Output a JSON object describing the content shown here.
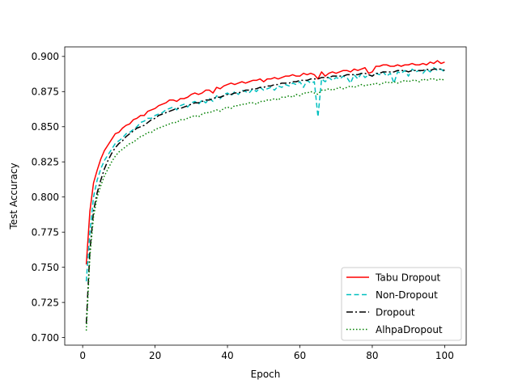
{
  "chart_data": {
    "type": "line",
    "title": "",
    "xlabel": "Epoch",
    "ylabel": "Test Accuracy",
    "xlim": [
      -4.95,
      105.95
    ],
    "ylim": [
      0.6946,
      0.9068
    ],
    "xticks": [
      0,
      20,
      40,
      60,
      80,
      100
    ],
    "yticks": [
      0.7,
      0.725,
      0.75,
      0.775,
      0.8,
      0.825,
      0.85,
      0.875,
      0.9
    ],
    "ytick_labels": [
      "0.700",
      "0.725",
      "0.750",
      "0.775",
      "0.800",
      "0.825",
      "0.850",
      "0.875",
      "0.900"
    ],
    "legend_position": "lower-right",
    "grid": false,
    "x": [
      1,
      2,
      3,
      4,
      5,
      6,
      7,
      8,
      9,
      10,
      11,
      12,
      13,
      14,
      15,
      16,
      17,
      18,
      19,
      20,
      21,
      22,
      23,
      24,
      25,
      26,
      27,
      28,
      29,
      30,
      31,
      32,
      33,
      34,
      35,
      36,
      37,
      38,
      39,
      40,
      41,
      42,
      43,
      44,
      45,
      46,
      47,
      48,
      49,
      50,
      51,
      52,
      53,
      54,
      55,
      56,
      57,
      58,
      59,
      60,
      61,
      62,
      63,
      64,
      65,
      66,
      67,
      68,
      69,
      70,
      71,
      72,
      73,
      74,
      75,
      76,
      77,
      78,
      79,
      80,
      81,
      82,
      83,
      84,
      85,
      86,
      87,
      88,
      89,
      90,
      91,
      92,
      93,
      94,
      95,
      96,
      97,
      98,
      99,
      100
    ],
    "series": [
      {
        "name": "Tabu Dropout",
        "color": "#ff0000",
        "style": "solid",
        "values": [
          0.752,
          0.79,
          0.81,
          0.819,
          0.827,
          0.833,
          0.837,
          0.841,
          0.845,
          0.846,
          0.849,
          0.851,
          0.852,
          0.855,
          0.856,
          0.858,
          0.858,
          0.861,
          0.862,
          0.863,
          0.865,
          0.866,
          0.867,
          0.869,
          0.869,
          0.868,
          0.87,
          0.87,
          0.871,
          0.873,
          0.874,
          0.873,
          0.874,
          0.876,
          0.876,
          0.874,
          0.878,
          0.877,
          0.879,
          0.88,
          0.881,
          0.88,
          0.881,
          0.882,
          0.881,
          0.882,
          0.883,
          0.883,
          0.884,
          0.882,
          0.884,
          0.884,
          0.885,
          0.884,
          0.885,
          0.886,
          0.886,
          0.887,
          0.886,
          0.886,
          0.888,
          0.887,
          0.888,
          0.887,
          0.884,
          0.889,
          0.886,
          0.888,
          0.889,
          0.888,
          0.889,
          0.89,
          0.89,
          0.889,
          0.891,
          0.89,
          0.891,
          0.892,
          0.888,
          0.889,
          0.893,
          0.893,
          0.894,
          0.894,
          0.893,
          0.893,
          0.894,
          0.893,
          0.894,
          0.894,
          0.895,
          0.894,
          0.894,
          0.895,
          0.894,
          0.896,
          0.895,
          0.897,
          0.895,
          0.896
        ]
      },
      {
        "name": "Non-Dropout",
        "color": "#00bfbf",
        "style": "dashed",
        "values": [
          0.74,
          0.775,
          0.8,
          0.812,
          0.82,
          0.826,
          0.83,
          0.834,
          0.838,
          0.84,
          0.842,
          0.845,
          0.846,
          0.848,
          0.85,
          0.853,
          0.854,
          0.856,
          0.856,
          0.858,
          0.859,
          0.86,
          0.862,
          0.863,
          0.864,
          0.862,
          0.865,
          0.866,
          0.864,
          0.867,
          0.868,
          0.866,
          0.869,
          0.867,
          0.87,
          0.868,
          0.872,
          0.87,
          0.873,
          0.874,
          0.872,
          0.875,
          0.873,
          0.876,
          0.875,
          0.874,
          0.877,
          0.875,
          0.878,
          0.876,
          0.877,
          0.878,
          0.876,
          0.879,
          0.878,
          0.88,
          0.879,
          0.881,
          0.88,
          0.882,
          0.878,
          0.883,
          0.881,
          0.882,
          0.857,
          0.884,
          0.882,
          0.885,
          0.883,
          0.885,
          0.884,
          0.886,
          0.885,
          0.881,
          0.887,
          0.884,
          0.888,
          0.885,
          0.887,
          0.886,
          0.888,
          0.887,
          0.889,
          0.886,
          0.888,
          0.881,
          0.889,
          0.888,
          0.89,
          0.886,
          0.891,
          0.889,
          0.89,
          0.888,
          0.891,
          0.889,
          0.892,
          0.89,
          0.891,
          0.889
        ]
      },
      {
        "name": "Dropout",
        "color": "#000000",
        "style": "dashdot",
        "values": [
          0.71,
          0.762,
          0.79,
          0.803,
          0.812,
          0.82,
          0.826,
          0.831,
          0.835,
          0.838,
          0.84,
          0.843,
          0.845,
          0.847,
          0.849,
          0.85,
          0.851,
          0.853,
          0.855,
          0.856,
          0.858,
          0.859,
          0.86,
          0.861,
          0.862,
          0.863,
          0.863,
          0.864,
          0.865,
          0.866,
          0.867,
          0.867,
          0.868,
          0.869,
          0.869,
          0.87,
          0.871,
          0.871,
          0.872,
          0.873,
          0.873,
          0.874,
          0.874,
          0.875,
          0.876,
          0.876,
          0.877,
          0.877,
          0.878,
          0.878,
          0.879,
          0.879,
          0.88,
          0.88,
          0.881,
          0.881,
          0.881,
          0.882,
          0.882,
          0.883,
          0.883,
          0.883,
          0.884,
          0.884,
          0.884,
          0.885,
          0.885,
          0.885,
          0.886,
          0.886,
          0.886,
          0.886,
          0.887,
          0.887,
          0.887,
          0.887,
          0.888,
          0.888,
          0.887,
          0.886,
          0.888,
          0.888,
          0.889,
          0.889,
          0.889,
          0.889,
          0.89,
          0.89,
          0.89,
          0.889,
          0.89,
          0.89,
          0.89,
          0.89,
          0.891,
          0.89,
          0.891,
          0.891,
          0.891,
          0.89
        ]
      },
      {
        "name": "AlhpaDropout",
        "color": "#008000",
        "style": "dotted",
        "values": [
          0.705,
          0.758,
          0.786,
          0.8,
          0.808,
          0.815,
          0.82,
          0.825,
          0.829,
          0.832,
          0.834,
          0.836,
          0.838,
          0.839,
          0.841,
          0.843,
          0.844,
          0.846,
          0.846,
          0.848,
          0.849,
          0.85,
          0.851,
          0.852,
          0.853,
          0.853,
          0.855,
          0.855,
          0.856,
          0.857,
          0.858,
          0.857,
          0.859,
          0.86,
          0.86,
          0.861,
          0.862,
          0.861,
          0.863,
          0.864,
          0.863,
          0.865,
          0.865,
          0.866,
          0.866,
          0.867,
          0.867,
          0.866,
          0.868,
          0.868,
          0.869,
          0.869,
          0.87,
          0.869,
          0.871,
          0.871,
          0.872,
          0.871,
          0.873,
          0.872,
          0.874,
          0.874,
          0.875,
          0.874,
          0.873,
          0.876,
          0.876,
          0.877,
          0.876,
          0.877,
          0.878,
          0.877,
          0.878,
          0.879,
          0.878,
          0.879,
          0.88,
          0.879,
          0.88,
          0.88,
          0.881,
          0.88,
          0.881,
          0.882,
          0.881,
          0.882,
          0.881,
          0.882,
          0.883,
          0.882,
          0.883,
          0.883,
          0.882,
          0.884,
          0.883,
          0.884,
          0.884,
          0.883,
          0.884,
          0.883
        ]
      }
    ]
  }
}
